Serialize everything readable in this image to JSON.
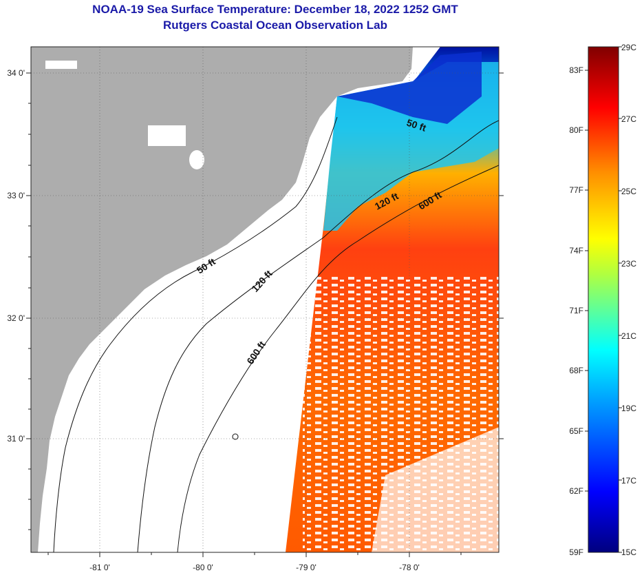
{
  "title": {
    "line1": "NOAA-19 Sea Surface Temperature:  December 18, 2022 1252 GMT",
    "line2": "Rutgers Coastal Ocean Observation Lab"
  },
  "map": {
    "lat_labels": [
      "34 0'",
      "33 0'",
      "32 0'",
      "31 0'"
    ],
    "lon_labels": [
      "-81 0'",
      "-80 0'",
      "-79 0'",
      "-78 0'"
    ],
    "depth_labels": [
      "50 ft",
      "120 ft",
      "600 ft",
      "50 ft",
      "120 ft",
      "600 ft"
    ]
  },
  "colorbar": {
    "fahrenheit": [
      "83F",
      "80F",
      "77F",
      "74F",
      "71F",
      "68F",
      "65F",
      "62F",
      "59F"
    ],
    "celsius": [
      "29C",
      "27C",
      "25C",
      "23C",
      "21C",
      "19C",
      "17C",
      "15C"
    ]
  },
  "colors": {
    "land": "#adadad",
    "title": "#1a1aa8"
  }
}
